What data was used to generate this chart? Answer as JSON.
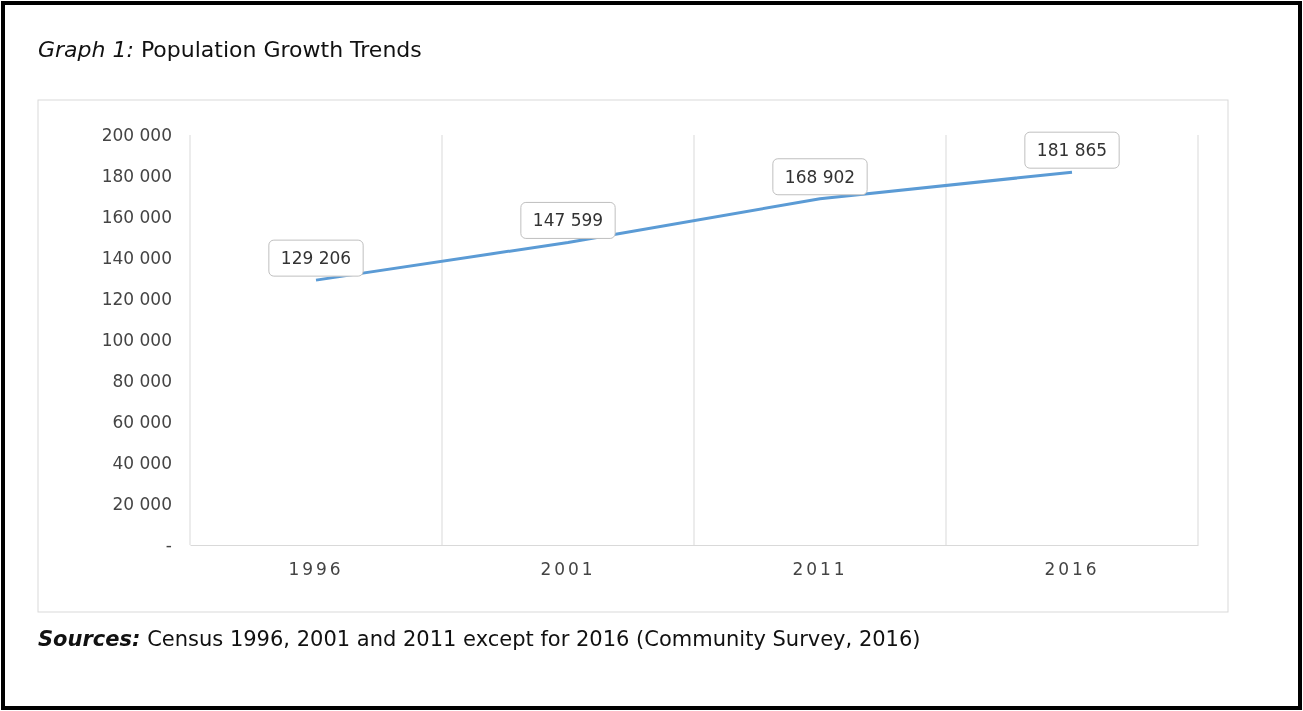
{
  "chart_data": {
    "type": "line",
    "title": "Graph 1: Population Growth Trends",
    "categories": [
      "1996",
      "2001",
      "2011",
      "2016"
    ],
    "series": [
      {
        "color": "#5b9bd5",
        "values": [
          129206,
          147599,
          168902,
          181865
        ],
        "value_labels": [
          "129 206",
          "147 599",
          "168 902",
          "181 865"
        ]
      }
    ],
    "ylim": [
      0,
      200000
    ],
    "yticks": [
      {
        "value": 0,
        "label": "-"
      },
      {
        "value": 20000,
        "label": "20 000"
      },
      {
        "value": 40000,
        "label": "40 000"
      },
      {
        "value": 60000,
        "label": "60 000"
      },
      {
        "value": 80000,
        "label": "80 000"
      },
      {
        "value": 100000,
        "label": "100 000"
      },
      {
        "value": 120000,
        "label": "120 000"
      },
      {
        "value": 140000,
        "label": "140 000"
      },
      {
        "value": 160000,
        "label": "160 000"
      },
      {
        "value": 180000,
        "label": "180 000"
      },
      {
        "value": 200000,
        "label": "200 000"
      }
    ],
    "grid": "x",
    "line_style": "solid",
    "annotations": [
      "Sources: Census 1996, 2001 and 2011 except for 2016 (Community Survey, 2016)"
    ]
  }
}
